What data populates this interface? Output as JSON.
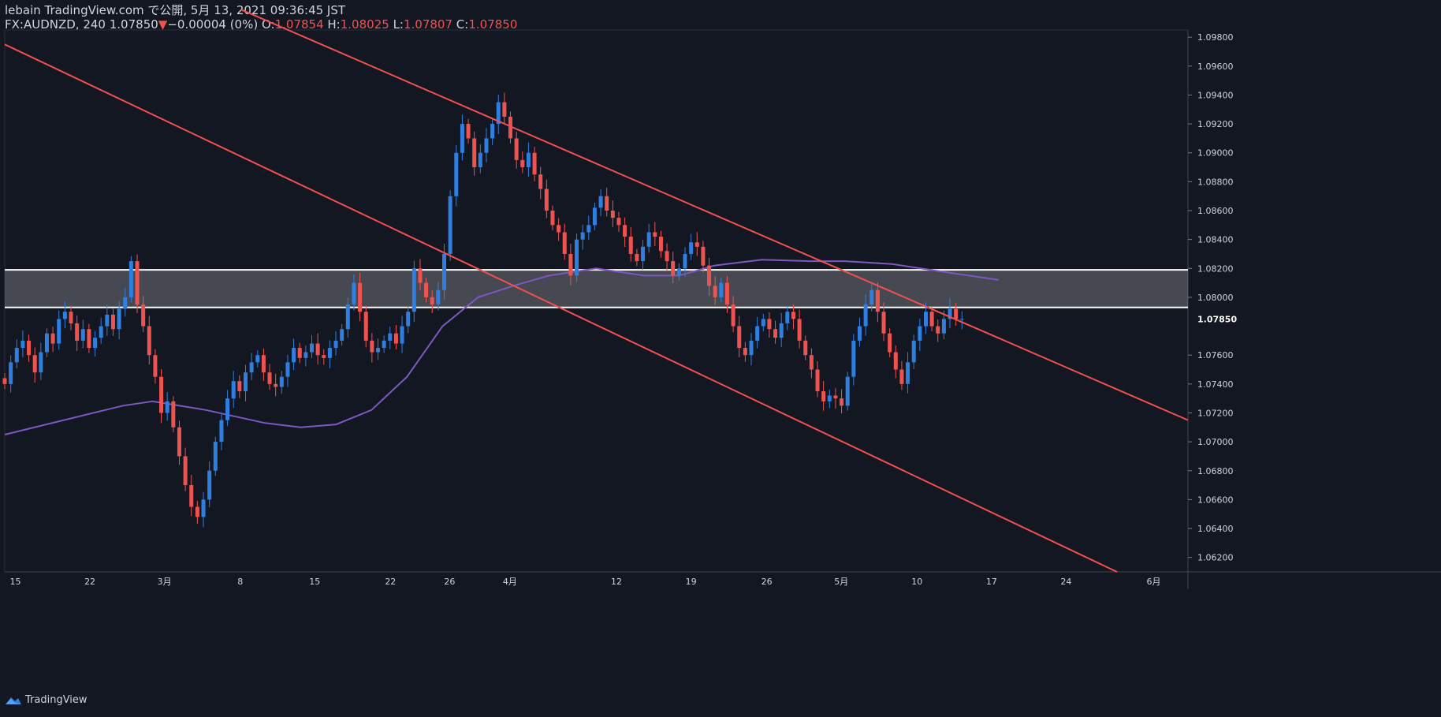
{
  "header": {
    "publish_line": "lebain TradingView.com で公開, 5月 13, 2021 09:36:45 JST",
    "symbol": "FX:AUDNZD, 240",
    "last": "1.07850",
    "change_arrow": "▼",
    "change": "−0.00004 (0%)",
    "o_label": "O:",
    "o_value": "1.07854",
    "h_label": "H:",
    "h_value": "1.08025",
    "l_label": "L:",
    "l_value": "1.07807",
    "c_label": "C:",
    "c_value": "1.07850"
  },
  "footer": {
    "brand": "TradingView"
  },
  "colors": {
    "background": "#131722",
    "up": "#2f7fe0",
    "down": "#ef5350",
    "ma": "#7e57c2",
    "trendline": "#f0504f",
    "zone": "#ffffff",
    "grid_text": "#d1d4dc"
  },
  "chart_data": {
    "type": "candlestick",
    "symbol": "FX:AUDNZD",
    "timeframe": "240",
    "y_range": [
      1.061,
      1.0985
    ],
    "y_ticks": [
      "1.09800",
      "1.09600",
      "1.09400",
      "1.09200",
      "1.09000",
      "1.08800",
      "1.08600",
      "1.08400",
      "1.08200",
      "1.08000",
      "1.07600",
      "1.07400",
      "1.07200",
      "1.07000",
      "1.06800",
      "1.06600",
      "1.06400",
      "1.06200"
    ],
    "last_price_label": "1.07850",
    "x_ticks": [
      "15",
      "22",
      "3月",
      "8",
      "15",
      "22",
      "26",
      "4月",
      "12",
      "19",
      "26",
      "5月",
      "10",
      "17",
      "24",
      "6月"
    ],
    "zone": {
      "top": 1.0819,
      "bottom": 1.0793
    },
    "trendlines": [
      {
        "name": "upper",
        "points": [
          [
            0.2,
            1.0999
          ],
          [
            1.0,
            1.0715
          ]
        ]
      },
      {
        "name": "lower",
        "points": [
          [
            0.0,
            1.0975
          ],
          [
            0.94,
            1.061
          ]
        ]
      }
    ],
    "closes": [
      1.074,
      1.0755,
      1.0765,
      1.077,
      1.076,
      1.0748,
      1.0762,
      1.0775,
      1.0768,
      1.0785,
      1.079,
      1.0782,
      1.077,
      1.0778,
      1.0765,
      1.0772,
      1.078,
      1.0788,
      1.0778,
      1.0792,
      1.08,
      1.0825,
      1.0795,
      1.078,
      1.076,
      1.0745,
      1.072,
      1.0728,
      1.071,
      1.069,
      1.067,
      1.0655,
      1.0648,
      1.066,
      1.068,
      1.07,
      1.0715,
      1.073,
      1.0742,
      1.0735,
      1.0748,
      1.0755,
      1.076,
      1.0748,
      1.074,
      1.0738,
      1.0745,
      1.0755,
      1.0765,
      1.0758,
      1.0762,
      1.0768,
      1.076,
      1.0758,
      1.0765,
      1.077,
      1.0778,
      1.0795,
      1.081,
      1.079,
      1.077,
      1.0762,
      1.0765,
      1.077,
      1.0775,
      1.0768,
      1.078,
      1.079,
      1.082,
      1.081,
      1.08,
      1.0795,
      1.0805,
      1.083,
      1.087,
      1.09,
      1.092,
      1.091,
      1.089,
      1.09,
      1.091,
      1.092,
      1.0935,
      1.0925,
      1.091,
      1.0895,
      1.089,
      1.09,
      1.0885,
      1.0875,
      1.086,
      1.085,
      1.0845,
      1.083,
      1.0815,
      1.084,
      1.0845,
      1.085,
      1.0862,
      1.087,
      1.086,
      1.0855,
      1.085,
      1.0842,
      1.083,
      1.0825,
      1.0835,
      1.0845,
      1.0842,
      1.0832,
      1.0825,
      1.0815,
      1.082,
      1.083,
      1.0838,
      1.0835,
      1.0822,
      1.0808,
      1.08,
      1.081,
      1.0795,
      1.078,
      1.0765,
      1.076,
      1.077,
      1.078,
      1.0785,
      1.0778,
      1.0772,
      1.0782,
      1.079,
      1.0785,
      1.077,
      1.076,
      1.075,
      1.0735,
      1.0728,
      1.0732,
      1.073,
      1.0725,
      1.0745,
      1.077,
      1.078,
      1.0795,
      1.0805,
      1.079,
      1.0775,
      1.0762,
      1.075,
      1.074,
      1.0755,
      1.077,
      1.078,
      1.079,
      1.078,
      1.0775,
      1.0785,
      1.0792,
      1.0785,
      1.0785
    ],
    "ma_name": "MA",
    "ma": [
      [
        0.0,
        1.0705
      ],
      [
        0.05,
        1.0715
      ],
      [
        0.1,
        1.0725
      ],
      [
        0.125,
        1.0728
      ],
      [
        0.17,
        1.0722
      ],
      [
        0.22,
        1.0713
      ],
      [
        0.25,
        1.071
      ],
      [
        0.28,
        1.0712
      ],
      [
        0.31,
        1.0722
      ],
      [
        0.34,
        1.0745
      ],
      [
        0.37,
        1.078
      ],
      [
        0.4,
        1.08
      ],
      [
        0.43,
        1.0808
      ],
      [
        0.46,
        1.0815
      ],
      [
        0.5,
        1.082
      ],
      [
        0.54,
        1.0815
      ],
      [
        0.57,
        1.0815
      ],
      [
        0.6,
        1.0822
      ],
      [
        0.64,
        1.0826
      ],
      [
        0.68,
        1.0825
      ],
      [
        0.71,
        1.0825
      ],
      [
        0.75,
        1.0823
      ],
      [
        0.79,
        1.0818
      ],
      [
        0.84,
        1.0812
      ]
    ]
  }
}
